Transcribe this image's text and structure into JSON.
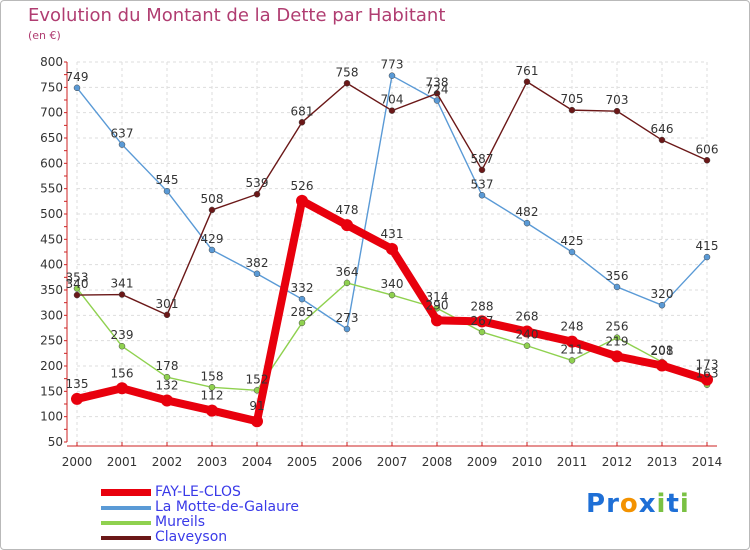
{
  "chart_data": {
    "type": "line",
    "title": "Evolution du Montant de la Dette par Habitant",
    "subtitle": "(en €)",
    "x": [
      "2000",
      "2001",
      "2002",
      "2003",
      "2004",
      "2005",
      "2006",
      "2007",
      "2008",
      "2009",
      "2010",
      "2011",
      "2012",
      "2013",
      "2014"
    ],
    "ylim": [
      50,
      800
    ],
    "yticks": [
      50,
      100,
      150,
      200,
      250,
      300,
      350,
      400,
      450,
      500,
      550,
      600,
      650,
      700,
      750,
      800
    ],
    "grid": true,
    "legend_position": "bottom-left",
    "series": [
      {
        "name": "FAY-LE-CLOS",
        "color": "#e8000d",
        "values": [
          135,
          156,
          132,
          112,
          91,
          526,
          478,
          431,
          290,
          288,
          268,
          248,
          219,
          201,
          173
        ]
      },
      {
        "name": "La Motte-de-Galaure",
        "color": "#5a9ad6",
        "values": [
          749,
          637,
          545,
          429,
          382,
          332,
          273,
          773,
          724,
          537,
          482,
          425,
          356,
          320,
          415
        ]
      },
      {
        "name": "Mureils",
        "color": "#8fd14f",
        "values": [
          353,
          239,
          178,
          158,
          152,
          285,
          364,
          340,
          314,
          267,
          240,
          211,
          256,
          208,
          163
        ]
      },
      {
        "name": "Claveyson",
        "color": "#6b1818",
        "values": [
          340,
          341,
          301,
          508,
          539,
          681,
          758,
          704,
          738,
          587,
          761,
          705,
          703,
          646,
          606
        ]
      }
    ]
  },
  "logo": {
    "text": "Proxiti",
    "letters": [
      "P",
      "r",
      "o",
      "x",
      "i",
      "t",
      "i"
    ],
    "colors": [
      "#1e6fd6",
      "#1e6fd6",
      "#f39200",
      "#1e6fd6",
      "#7ac143",
      "#1e6fd6",
      "#7ac143"
    ]
  }
}
